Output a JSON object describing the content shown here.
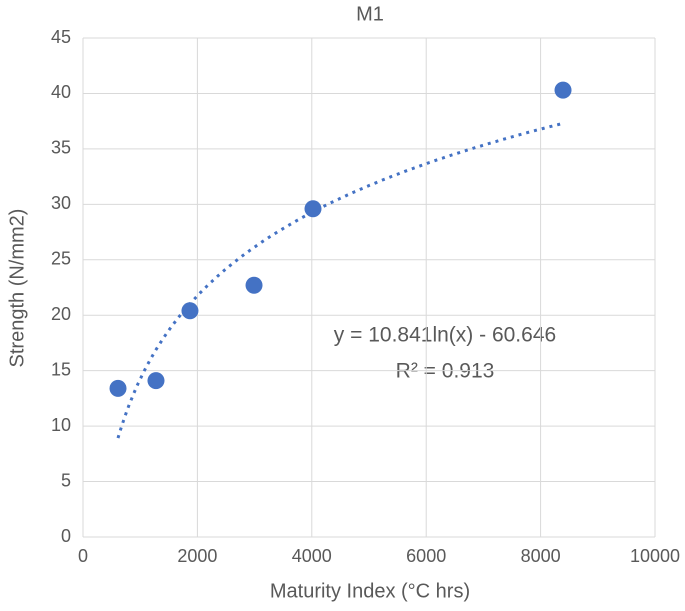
{
  "chart_data": {
    "type": "scatter",
    "title": "M1",
    "x_label": "Maturity Index (°C hrs)",
    "y_label": "Strength (N/mm2)",
    "series": [
      {
        "name": "M1",
        "color": "#4472c4",
        "x": [
          612,
          1276,
          1870,
          2990,
          4021,
          8392
        ],
        "values": [
          13.4,
          14.1,
          20.4,
          22.7,
          29.6,
          40.3
        ]
      }
    ],
    "trendline": {
      "kind": "log",
      "coefficients": [
        10.841,
        -60.646
      ],
      "color": "#4472c4",
      "equation": "y = 10.841ln(x) - 60.646",
      "r_squared": "R² = 0.913"
    },
    "xlim": [
      0,
      10000
    ],
    "xticks": [
      0,
      2000,
      4000,
      6000,
      8000,
      10000
    ],
    "ylim": [
      0,
      45
    ],
    "yticks": [
      0,
      5,
      10,
      15,
      20,
      25,
      30,
      35,
      40,
      45
    ],
    "grid": true
  }
}
